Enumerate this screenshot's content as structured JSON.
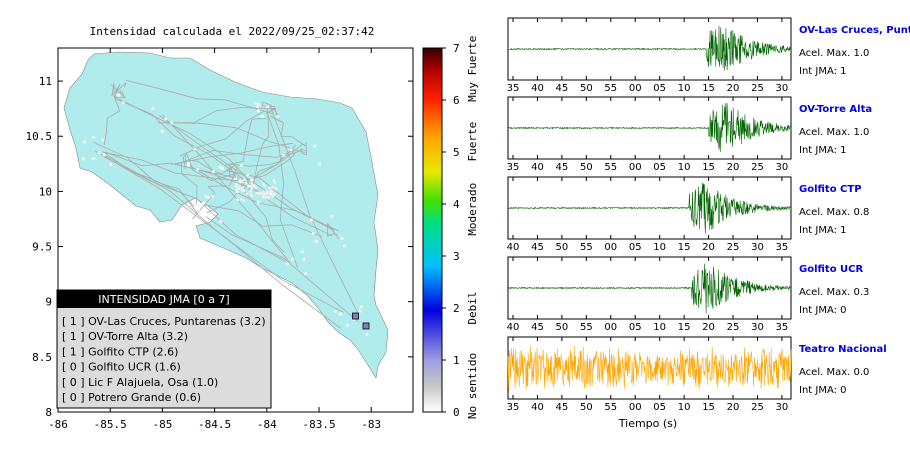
{
  "map": {
    "title": "Intensidad calculada el 2022/09/25_02:37:42",
    "xlim": [
      -86,
      -82.6
    ],
    "ylim": [
      8,
      11.3
    ],
    "xticks": [
      -86,
      -85.5,
      -85,
      -84.5,
      -84,
      -83.5,
      -83
    ],
    "yticks": [
      8,
      8.5,
      9,
      9.5,
      10,
      10.5,
      11
    ],
    "land_color": "#b0ecec",
    "road_color": "#aaaaaa",
    "stations": [
      {
        "lon": -83.15,
        "lat": 8.87
      },
      {
        "lon": -83.05,
        "lat": 8.78
      }
    ]
  },
  "legend": {
    "title": "INTENSIDAD JMA [0 a 7]",
    "items": [
      "[ 1 ] OV-Las Cruces, Puntarenas (3.2)",
      "[ 1 ] OV-Torre Alta (3.2)",
      "[ 1 ] Golfito CTP (2.6)",
      "[ 0 ] Golfito UCR (1.6)",
      "[ 0 ] Lic F Alajuela, Osa (1.0)",
      "[ 0 ] Potrero Grande (0.6)"
    ]
  },
  "colorbar": {
    "ticks": [
      "0",
      "1",
      "2",
      "3",
      "4",
      "5",
      "6",
      "7"
    ],
    "labels": [
      {
        "text": "No sentido",
        "level": 0.5
      },
      {
        "text": "Debil",
        "level": 2
      },
      {
        "text": "Moderado",
        "level": 3.9
      },
      {
        "text": "Fuerte",
        "level": 5.2
      },
      {
        "text": "Muy Fuerte",
        "level": 6.6
      }
    ]
  },
  "traces": {
    "xlabel": "Tiempo (s)",
    "tick_sets": {
      "a": [
        "35",
        "40",
        "45",
        "50",
        "55",
        "00",
        "05",
        "10",
        "15",
        "20",
        "25",
        "30"
      ],
      "b": [
        "40",
        "45",
        "50",
        "55",
        "00",
        "05",
        "10",
        "15",
        "20",
        "25",
        "30",
        "35"
      ]
    },
    "items": [
      {
        "name": "OV-Las Cruces, Puntar",
        "acel": "Acel. Max. 1.0",
        "int": "Int JMA: 1",
        "color": "#006400",
        "onset": 0.7,
        "amp": 0.95,
        "ticks": "a"
      },
      {
        "name": "OV-Torre Alta",
        "acel": "Acel. Max. 1.0",
        "int": "Int JMA: 1",
        "color": "#006400",
        "onset": 0.71,
        "amp": 0.95,
        "ticks": "a"
      },
      {
        "name": "Golfito CTP",
        "acel": "Acel. Max. 0.8",
        "int": "Int JMA: 1",
        "color": "#006400",
        "onset": 0.64,
        "amp": 0.95,
        "ticks": "b"
      },
      {
        "name": "Golfito UCR",
        "acel": "Acel. Max. 0.3",
        "int": "Int JMA: 0",
        "color": "#006400",
        "onset": 0.65,
        "amp": 0.95,
        "ticks": "b"
      },
      {
        "name": "Teatro Nacional",
        "acel": "Acel. Max. 0.0",
        "int": "Int JMA: 0",
        "color": "#ffa500",
        "onset": -1,
        "amp": 0.8,
        "ticks": "a"
      }
    ]
  }
}
